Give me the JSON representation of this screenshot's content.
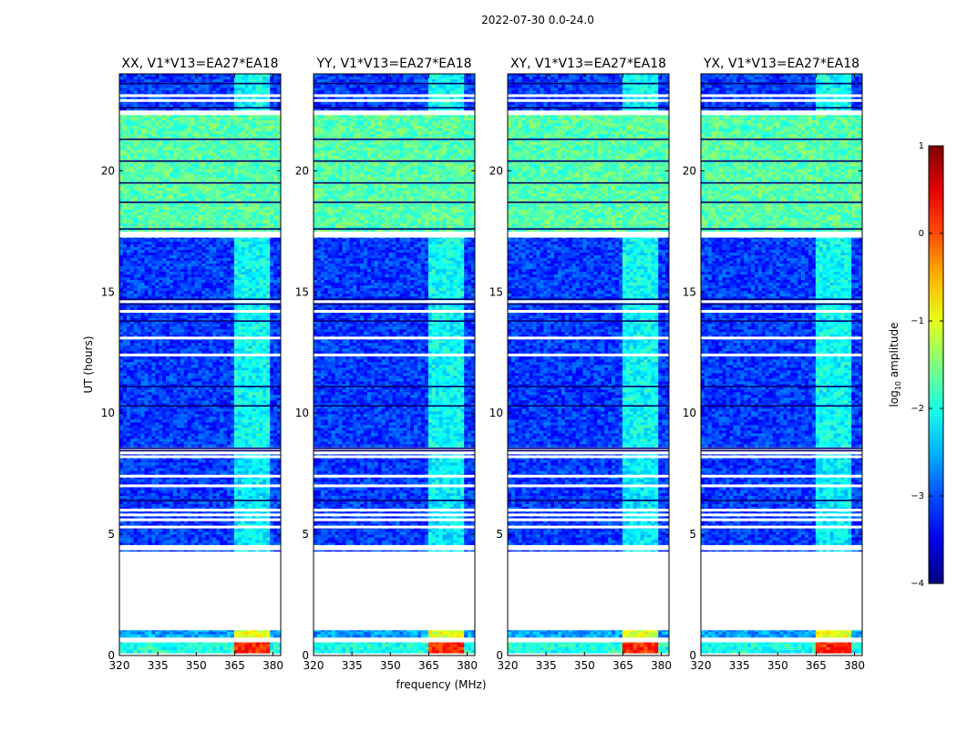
{
  "figure": {
    "suptitle": "2022-07-30 0.0-24.0",
    "xlabel": "frequency (MHz)",
    "ylabel": "UT (hours)",
    "colorbar_label": "log",
    "colorbar_label_sub": "10",
    "colorbar_label_rest": " amplitude"
  },
  "chart_data": {
    "type": "heatmap",
    "xlim": [
      320,
      383
    ],
    "ylim": [
      0,
      24
    ],
    "x_ticks": [
      320,
      335,
      350,
      365,
      380
    ],
    "y_ticks": [
      0,
      5,
      10,
      15,
      20
    ],
    "colorbar": {
      "range": [
        -4,
        1
      ],
      "ticks": [
        1,
        0,
        -1,
        -2,
        -3,
        -4
      ],
      "tick_labels": [
        "1",
        "0",
        "−1",
        "−2",
        "−3",
        "−4"
      ],
      "colormap": "jet"
    },
    "panels": [
      {
        "title": "XX, V1*V13=EA27*EA18",
        "pol": "XX"
      },
      {
        "title": "YY, V1*V13=EA27*EA18",
        "pol": "YY"
      },
      {
        "title": "XY, V1*V13=EA27*EA18",
        "pol": "XY"
      },
      {
        "title": "YX, V1*V13=EA27*EA18",
        "pol": "YX"
      }
    ],
    "time_blocks": [
      {
        "t0": 0.1,
        "t1": 0.6,
        "level": -2.0,
        "rfi_band": [
          364,
          380
        ],
        "rfi_level": 0.2
      },
      {
        "t0": 0.75,
        "t1": 1.1,
        "level": -2.6,
        "rfi_band": [
          364,
          380
        ],
        "rfi_level": -1.0
      },
      {
        "t0": 4.3,
        "t1": 8.3,
        "level": -3.1,
        "rfi_band": [
          363.5,
          380
        ],
        "rfi_level": -2.2
      },
      {
        "t0": 8.6,
        "t1": 17.3,
        "level": -3.1,
        "rfi_band": [
          363.5,
          380
        ],
        "rfi_level": -2.1
      },
      {
        "t0": 17.5,
        "t1": 22.3,
        "level": -1.7,
        "rfi_band": [
          363.5,
          380
        ],
        "rfi_level": -1.7
      },
      {
        "t0": 22.5,
        "t1": 24.0,
        "level": -3.1,
        "rfi_band": [
          363.5,
          380
        ],
        "rfi_level": -2.1
      }
    ],
    "gaps_hours": [
      0.6,
      1.1,
      4.4,
      4.5,
      5.3,
      5.6,
      5.8,
      6.0,
      7.0,
      7.4,
      8.2,
      8.5,
      12.4,
      13.1,
      14.2,
      14.6,
      17.3,
      22.4,
      23.1,
      22.9
    ],
    "dark_lines_hours": [
      6.4,
      8.45,
      8.55,
      10.3,
      11.1,
      13.8,
      14.5,
      14.7,
      17.6,
      18.7,
      19.5,
      20.4,
      21.3,
      22.6,
      23.6
    ]
  }
}
